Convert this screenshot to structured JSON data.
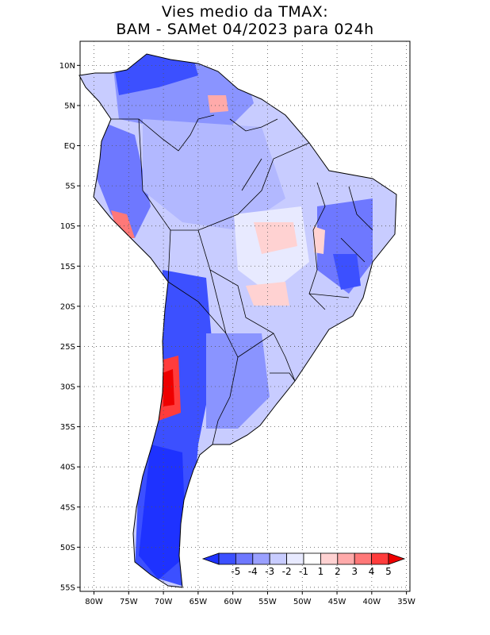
{
  "title": {
    "line1": "Vies medio da TMAX:",
    "line2": "BAM - SAMet 04/2023  para 024h"
  },
  "map": {
    "lat_labels": [
      "10N",
      "5N",
      "EQ",
      "5S",
      "10S",
      "15S",
      "20S",
      "25S",
      "30S",
      "35S",
      "40S",
      "45S",
      "50S",
      "55S"
    ],
    "lon_labels": [
      "80W",
      "75W",
      "70W",
      "65W",
      "60W",
      "55W",
      "50W",
      "45W",
      "40W",
      "35W"
    ],
    "lat_range": [
      -55.5,
      13
    ],
    "lon_range": [
      -82,
      -34.5
    ],
    "gridlines": "dotted"
  },
  "colorbar": {
    "labels": [
      "-5",
      "-4",
      "-3",
      "-2",
      "-1",
      "1",
      "2",
      "3",
      "4",
      "5"
    ],
    "colors": [
      "#1e32ff",
      "#3c50ff",
      "#6e78ff",
      "#9aa0ff",
      "#c8ccff",
      "#e8eaff",
      "#ffffff",
      "#ffd2d2",
      "#ffaaaa",
      "#ff7878",
      "#ff3c3c",
      "#ee0000"
    ]
  }
}
